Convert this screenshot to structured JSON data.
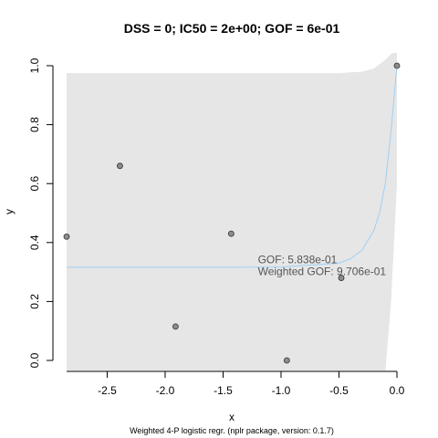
{
  "chart_data": {
    "type": "scatter",
    "title": "DSS = 0; IC50 = 2e+00; GOF = 6e-01",
    "xlabel": "x",
    "ylabel": "y",
    "xlim": [
      -2.85,
      0.0
    ],
    "ylim": [
      0.0,
      1.0
    ],
    "x_ticks": [
      -2.5,
      -2.0,
      -1.5,
      -1.0,
      -0.5,
      0.0
    ],
    "x_tick_labels": [
      "-2.5",
      "-2.0",
      "-1.5",
      "-1.0",
      "-0.5",
      "0.0"
    ],
    "y_ticks": [
      0.0,
      0.2,
      0.4,
      0.6,
      0.8,
      1.0
    ],
    "y_tick_labels": [
      "0.0",
      "0.2",
      "0.4",
      "0.6",
      "0.8",
      "1.0"
    ],
    "points": {
      "x": [
        -2.85,
        -2.39,
        -1.91,
        -1.43,
        -0.95,
        -0.48,
        0.0
      ],
      "y": [
        0.42,
        0.66,
        0.115,
        0.43,
        0.0,
        0.28,
        1.0
      ]
    },
    "fit_curve": {
      "x": [
        -2.85,
        -2.0,
        -1.5,
        -1.0,
        -0.5,
        -0.4,
        -0.3,
        -0.2,
        -0.15,
        -0.1,
        -0.05,
        0.0
      ],
      "y": [
        0.316,
        0.316,
        0.316,
        0.317,
        0.33,
        0.345,
        0.375,
        0.44,
        0.5,
        0.6,
        0.78,
        1.0
      ]
    },
    "confidence_band": {
      "x": [
        -2.85,
        -0.5,
        -0.3,
        -0.2,
        -0.1,
        -0.05,
        0.0
      ],
      "upper": [
        0.975,
        0.975,
        0.98,
        0.99,
        1.02,
        1.04,
        1.05
      ],
      "lower": [
        -0.04,
        -0.04,
        -0.04,
        -0.04,
        -0.04,
        0.2,
        0.6
      ]
    },
    "annotations": [
      "GOF: 5.838e-01",
      "Weighted GOF: 9.706e-01"
    ],
    "annotation_position": {
      "x": -1.2,
      "y": [
        0.33,
        0.29
      ]
    },
    "caption": "Weighted 4-P logistic regr. (nplr package, version: 0.1.7)",
    "colors": {
      "band": "#e6e6e6",
      "curve": "#9fd0f5",
      "point_fill": "#8c8c8c",
      "point_stroke": "#333333",
      "annotation": "#555555"
    },
    "grid": false
  }
}
